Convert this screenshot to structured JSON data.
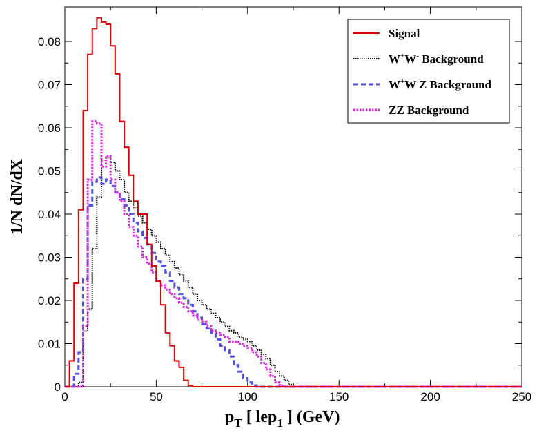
{
  "chart_data": {
    "type": "histogram-step",
    "xlabel": "p_T [ lep_1 ] (GeV)",
    "ylabel": "1/N dN/dX",
    "xlim": [
      0,
      250
    ],
    "ylim": [
      0,
      0.088
    ],
    "bin_width": 2.5,
    "bin_start": 0,
    "x_ticks": [
      0,
      50,
      100,
      150,
      200,
      250
    ],
    "y_ticks": [
      0,
      0.01,
      0.02,
      0.03,
      0.04,
      0.05,
      0.06,
      0.07,
      0.08
    ],
    "x_tick_labels": [
      "0",
      "50",
      "100",
      "150",
      "200",
      "250"
    ],
    "y_tick_labels": [
      "0",
      "0.01",
      "0.02",
      "0.03",
      "0.04",
      "0.05",
      "0.06",
      "0.07",
      "0.08"
    ],
    "legend_position": "top-right",
    "series": [
      {
        "name": "Signal",
        "color": "#e00000",
        "style": "solid",
        "values": [
          0,
          0.006,
          0.024,
          0.041,
          0.064,
          0.077,
          0.083,
          0.0855,
          0.0845,
          0.084,
          0.079,
          0.0725,
          0.0615,
          0.0555,
          0.049,
          0.043,
          0.04,
          0.04,
          0.033,
          0.028,
          0.0245,
          0.019,
          0.0125,
          0.0095,
          0.006,
          0.0045,
          0.0015,
          0.0003,
          0
        ]
      },
      {
        "name": "W+W- Background",
        "color": "#000000",
        "style": "dotted",
        "values": [
          0,
          0,
          0,
          0.001,
          0.013,
          0.018,
          0.032,
          0.044,
          0.0525,
          0.053,
          0.052,
          0.05,
          0.048,
          0.045,
          0.043,
          0.0415,
          0.0395,
          0.038,
          0.0365,
          0.035,
          0.0335,
          0.032,
          0.0305,
          0.029,
          0.0275,
          0.026,
          0.0245,
          0.023,
          0.0215,
          0.02,
          0.019,
          0.018,
          0.017,
          0.016,
          0.015,
          0.014,
          0.013,
          0.0125,
          0.0115,
          0.011,
          0.0105,
          0.0095,
          0.0085,
          0.0075,
          0.0065,
          0.005,
          0.0035,
          0.0025,
          0.0015,
          0.0005,
          0
        ]
      },
      {
        "name": "W+W-Z Background",
        "color": "#5050e0",
        "style": "dashed",
        "values": [
          0,
          0,
          0.003,
          0.008,
          0.025,
          0.042,
          0.0475,
          0.0485,
          0.047,
          0.048,
          0.0465,
          0.045,
          0.0435,
          0.042,
          0.04,
          0.038,
          0.036,
          0.0345,
          0.033,
          0.031,
          0.029,
          0.028,
          0.0265,
          0.0245,
          0.023,
          0.0215,
          0.0205,
          0.019,
          0.0175,
          0.016,
          0.0145,
          0.0135,
          0.0125,
          0.011,
          0.0095,
          0.0085,
          0.007,
          0.005,
          0.0035,
          0.002,
          0.001,
          0.0003,
          0
        ]
      },
      {
        "name": "ZZ Background",
        "color": "#e020e0",
        "style": "dotted",
        "values": [
          0,
          0,
          0,
          0,
          0.014,
          0.048,
          0.0615,
          0.061,
          0.051,
          0.0535,
          0.048,
          0.045,
          0.043,
          0.04,
          0.037,
          0.035,
          0.0325,
          0.03,
          0.0285,
          0.0265,
          0.0245,
          0.0235,
          0.0225,
          0.0215,
          0.0205,
          0.0195,
          0.0185,
          0.0175,
          0.0165,
          0.0155,
          0.015,
          0.014,
          0.013,
          0.0125,
          0.012,
          0.0115,
          0.0105,
          0.0105,
          0.01,
          0.0095,
          0.009,
          0.008,
          0.007,
          0.0055,
          0.004,
          0.0025,
          0.001,
          0.0003,
          0
        ]
      }
    ]
  },
  "labels": {
    "ylabel": "1/N dN/dX",
    "xlabel_main": "p",
    "xlabel_sub": "T",
    "xlabel_mid": " [ lep",
    "xlabel_sub2": "1",
    "xlabel_end": " ] (GeV)"
  },
  "legend": {
    "signal": "Signal",
    "ww_prefix": "W",
    "ww_sup1": "+",
    "ww_mid": "W",
    "ww_sup2": "-",
    "ww_suffix": " Background",
    "wwz_prefix": "W",
    "wwz_sup1": "+",
    "wwz_mid": "W",
    "wwz_sup2": "-",
    "wwz_suffix": "Z Background",
    "zz": "ZZ Background"
  }
}
